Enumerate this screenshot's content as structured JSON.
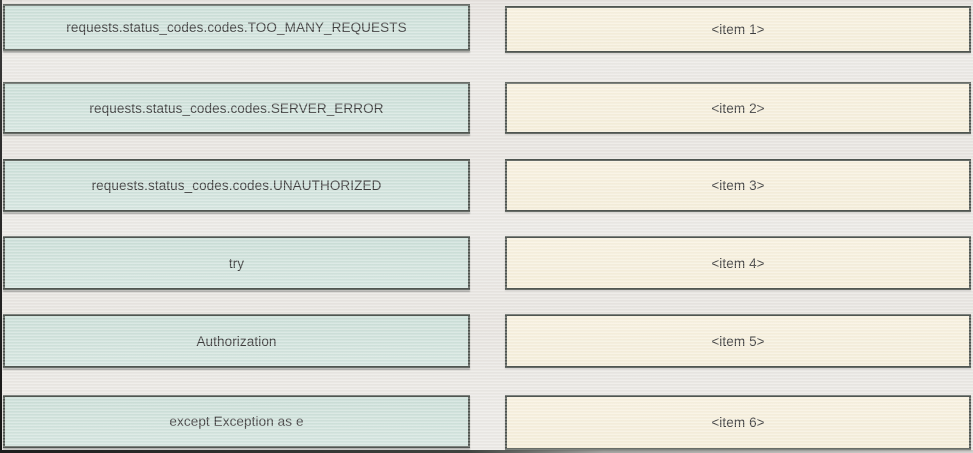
{
  "exercise": {
    "kind": "drag-and-drop-matching",
    "columns": 2,
    "rows": 6
  },
  "colors": {
    "background": "#ebe9e5",
    "source_box_fill": "#cfe1da",
    "target_box_fill": "#f7f0dd",
    "box_border": "#4e544f",
    "text": "#3b3b3b"
  },
  "left_column": {
    "items": [
      {
        "label": "requests.status_codes.codes.TOO_MANY_REQUESTS"
      },
      {
        "label": "requests.status_codes.codes.SERVER_ERROR"
      },
      {
        "label": "requests.status_codes.codes.UNAUTHORIZED"
      },
      {
        "label": "try"
      },
      {
        "label": "Authorization"
      },
      {
        "label": "except Exception as e"
      }
    ]
  },
  "right_column": {
    "items": [
      {
        "label": "<item 1>"
      },
      {
        "label": "<item 2>"
      },
      {
        "label": "<item 3>"
      },
      {
        "label": "<item 4>"
      },
      {
        "label": "<item 5>"
      },
      {
        "label": "<item 6>"
      }
    ]
  }
}
